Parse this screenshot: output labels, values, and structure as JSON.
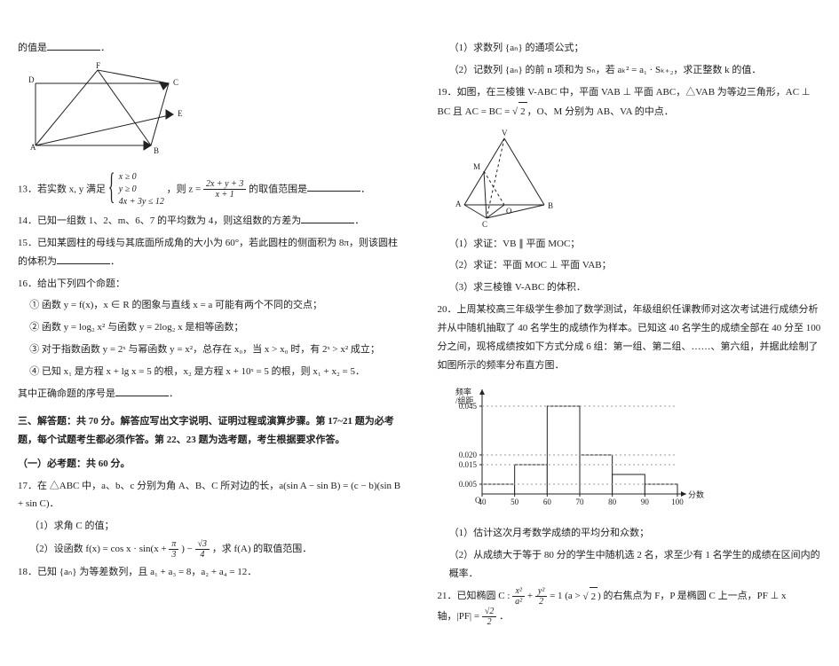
{
  "left": {
    "q12_tail": "的值是",
    "geom_labels": {
      "A": "A",
      "B": "B",
      "C": "C",
      "D": "D",
      "E": "E",
      "F": "F"
    },
    "q13_pre": "13．若实数 x, y 满足",
    "q13_sys": [
      "x ≥ 0",
      "y ≥ 0",
      "4x + 3y ≤ 12"
    ],
    "q13_mid": "，则 z =",
    "q13_frac_num": "2x + y + 3",
    "q13_frac_den": "x + 1",
    "q13_post": " 的取值范围是",
    "q14": "14．已知一组数 1、2、m、6、7 的平均数为 4，则这组数的方差为",
    "q15": "15．已知某圆柱的母线与其底面所成角的大小为 60°，若此圆柱的侧面积为 8π，则该圆柱的体积为",
    "q16_head": "16．给出下列四个命题：",
    "q16_1": "① 函数 y = f(x)，x ∈ R 的图象与直线 x = a 可能有两个不同的交点；",
    "q16_2_a": "② 函数 y = log₂ x² 与函数 y = 2log₂ x 是相等函数；",
    "q16_2_b": "③ 对于指数函数 y = 2ˣ 与幂函数 y = x²，总存在 x₀，当 x > x₀ 时，有 2ˣ > x² 成立；",
    "q16_3": "④ 已知 x₁ 是方程 x + lg x = 5 的根，x₂ 是方程 x + 10ˣ = 5 的根，则 x₁ + x₂ = 5．",
    "q16_tail": "其中正确命题的序号是",
    "sec3_title": "三、解答题：共 70 分。解答应写出文字说明、证明过程或演算步骤。第 17~21 题为必考题，每个试题考生都必须作答。第 22、23 题为选考题，考生根据要求作答。",
    "sec3_sub": "（一）必考题：共 60 分。",
    "q17": "17．在 △ABC 中，a、b、c 分别为角 A、B、C 所对边的长，a(sin A − sin B) = (c − b)(sin B + sin C)．",
    "q17_1": "（1）求角 C 的值；",
    "q17_2_a": "（2）设函数 f(x) = cos x · sin(x +",
    "q17_2_frac1_num": "π",
    "q17_2_frac1_den": "3",
    "q17_2_b": ") −",
    "q17_2_frac2_num": "√3",
    "q17_2_frac2_den": "4",
    "q17_2_c": "，求 f(A) 的取值范围．",
    "q18": "18．已知 {aₙ} 为等差数列，且 a₁ + a₃ = 8，a₂ + a₄ = 12．"
  },
  "right": {
    "q18_1": "（1）求数列 {aₙ} 的通项公式；",
    "q18_2": "（2）记数列 {aₙ} 的前 n 项和为 Sₙ，若 aₖ² = a₁ · Sₖ₊₂，求正整数 k 的值．",
    "q19_a": "19．如图，在三棱锥 V-ABC 中，平面 VAB ⊥ 平面 ABC，△VAB 为等边三角形，AC ⊥ BC 且 AC = BC = ",
    "q19_sqrt": "2",
    "q19_b": "，O、M 分别为 AB、VA 的中点．",
    "pyr_labels": {
      "V": "V",
      "A": "A",
      "B": "B",
      "C": "C",
      "M": "M",
      "O": "O"
    },
    "q19_1": "（1）求证：VB ∥ 平面 MOC；",
    "q19_2": "（2）求证：平面 MOC ⊥ 平面 VAB；",
    "q19_3": "（3）求三棱锥 V-ABC 的体积．",
    "q20": "20．上周某校高三年级学生参加了数学测试，年级组织任课教师对这次考试进行成绩分析并从中随机抽取了 40 名学生的成绩作为样本。已知这 40 名学生的成绩全部在 40 分至 100 分之间，现将成绩按如下方式分成 6 组：第一组、第二组、……、第六组，并据此绘制了如图所示的频率分布直方图．",
    "hist": {
      "ylabel": "频率\n/组距",
      "xlabel": "分数",
      "x_ticks": [
        40,
        50,
        60,
        70,
        80,
        90,
        100
      ],
      "bars": [
        {
          "x": 40,
          "h": 0.005,
          "color": "#ffffff"
        },
        {
          "x": 50,
          "h": 0.015,
          "color": "#ffffff"
        },
        {
          "x": 60,
          "h": 0.045,
          "color": "#ffffff"
        },
        {
          "x": 70,
          "h": 0.02,
          "color": "#ffffff"
        },
        {
          "x": 80,
          "h": 0.01,
          "color": "#ffffff"
        },
        {
          "x": 90,
          "h": 0.005,
          "color": "#ffffff"
        }
      ],
      "y_ticks": [
        0.005,
        0.015,
        0.02,
        0.045
      ],
      "axis_color": "#222222",
      "bar_stroke": "#222222"
    },
    "q20_1": "（1）估计这次月考数学成绩的平均分和众数；",
    "q20_2": "（2）从成绩大于等于 80 分的学生中随机选 2 名，求至少有 1 名学生的成绩在区间内的概率．",
    "q21_a": "21．已知椭圆 C :",
    "q21_frac1_num": "x²",
    "q21_frac1_den": "a²",
    "q21_plus": " + ",
    "q21_frac2_num": "y²",
    "q21_frac2_den": "2",
    "q21_b": " = 1 (a > ",
    "q21_sqrt": "2",
    "q21_c": ") 的右焦点为 F，P 是椭圆 C 上一点，PF ⊥ x 轴，|PF| = ",
    "q21_frac3_num": "√2",
    "q21_frac3_den": "2",
    "q21_d": "．"
  }
}
